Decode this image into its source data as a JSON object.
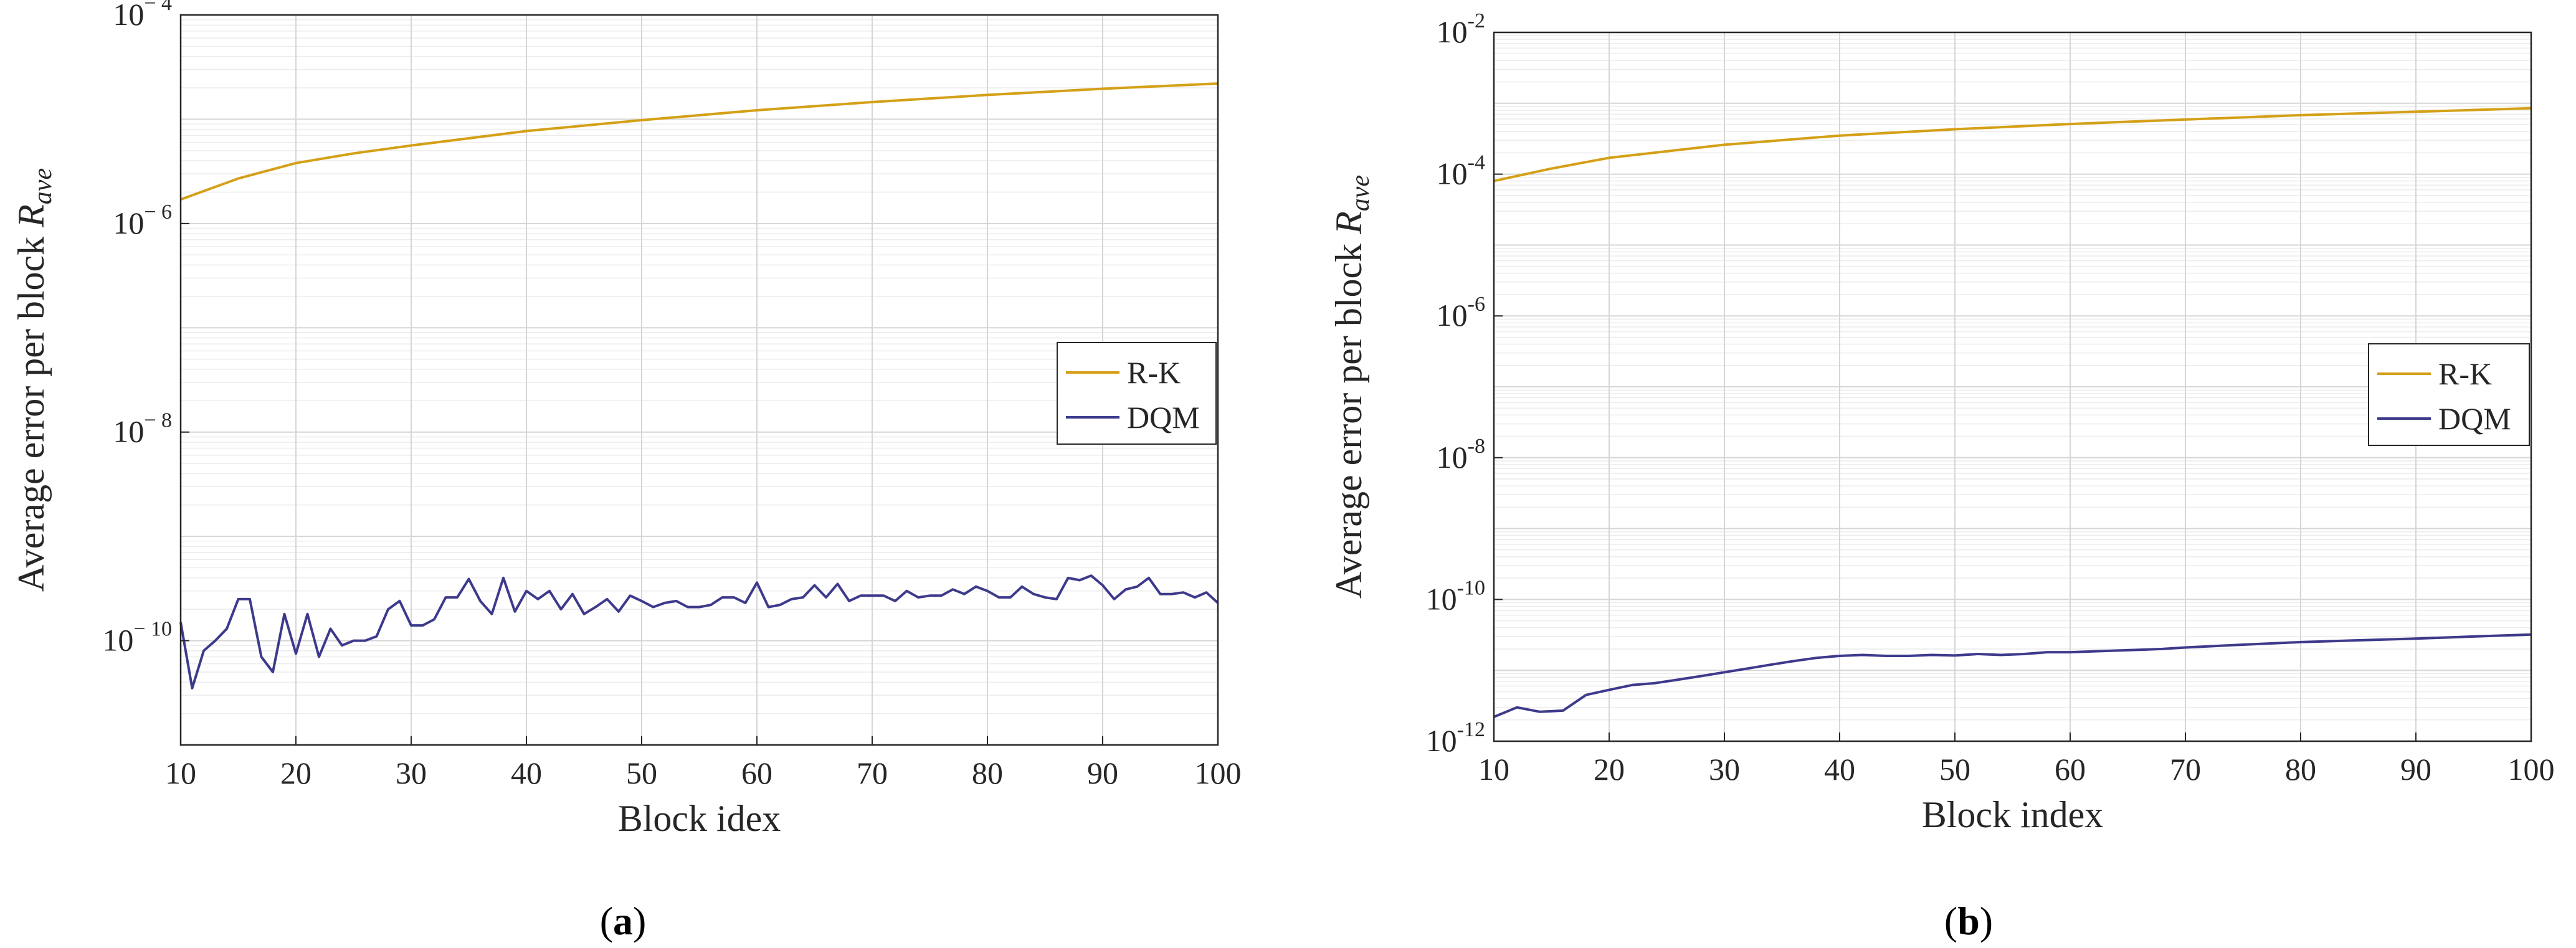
{
  "chart_data": [
    {
      "type": "line",
      "panel_label": "a",
      "xlabel": "Block idex",
      "ylabel_main": "Average error per block ",
      "ylabel_symbol": "R",
      "ylabel_sub": "ave",
      "xlim": [
        10,
        100
      ],
      "ylim_exponent": [
        -11,
        -4
      ],
      "xticks": [
        10,
        20,
        30,
        40,
        50,
        60,
        70,
        80,
        90,
        100
      ],
      "yticks": [
        {
          "exp": -4,
          "base": "10",
          "power": "− 4"
        },
        {
          "exp": -6,
          "base": "10",
          "power": "− 6"
        },
        {
          "exp": -8,
          "base": "10",
          "power": "− 8"
        },
        {
          "exp": -10,
          "base": "10",
          "power": "− 10"
        }
      ],
      "grid": true,
      "legend_position": "right-middle",
      "series": [
        {
          "name": "R-K",
          "color": "#D4A017",
          "x": [
            10,
            15,
            20,
            25,
            30,
            40,
            50,
            60,
            70,
            80,
            90,
            100
          ],
          "values": [
            1.7e-06,
            2.7e-06,
            3.8e-06,
            4.7e-06,
            5.6e-06,
            7.7e-06,
            9.8e-06,
            1.22e-05,
            1.46e-05,
            1.71e-05,
            1.96e-05,
            2.2e-05
          ]
        },
        {
          "name": "DQM",
          "color": "#3D3A8C",
          "x": [
            10,
            11,
            12,
            13,
            14,
            15,
            16,
            17,
            18,
            19,
            20,
            21,
            22,
            23,
            24,
            25,
            26,
            27,
            28,
            29,
            30,
            31,
            32,
            33,
            34,
            35,
            36,
            37,
            38,
            39,
            40,
            41,
            42,
            43,
            44,
            45,
            46,
            47,
            48,
            49,
            50,
            51,
            52,
            53,
            54,
            55,
            56,
            57,
            58,
            59,
            60,
            61,
            62,
            63,
            64,
            65,
            66,
            67,
            68,
            69,
            70,
            71,
            72,
            73,
            74,
            75,
            76,
            77,
            78,
            79,
            80,
            81,
            82,
            83,
            84,
            85,
            86,
            87,
            88,
            89,
            90,
            91,
            92,
            93,
            94,
            95,
            96,
            97,
            98,
            99,
            100
          ],
          "values": [
            1.5e-10,
            3.5e-11,
            8e-11,
            1e-10,
            1.3e-10,
            2.5e-10,
            2.5e-10,
            7e-11,
            5e-11,
            1.8e-10,
            7.5e-11,
            1.8e-10,
            7e-11,
            1.3e-10,
            9e-11,
            1e-10,
            1e-10,
            1.1e-10,
            2e-10,
            2.4e-10,
            1.4e-10,
            1.4e-10,
            1.6e-10,
            2.6e-10,
            2.6e-10,
            3.9e-10,
            2.4e-10,
            1.8e-10,
            4e-10,
            1.9e-10,
            3e-10,
            2.5e-10,
            3e-10,
            2e-10,
            2.8e-10,
            1.8e-10,
            2.1e-10,
            2.5e-10,
            1.9e-10,
            2.7e-10,
            2.4e-10,
            2.1e-10,
            2.3e-10,
            2.4e-10,
            2.1e-10,
            2.1e-10,
            2.2e-10,
            2.6e-10,
            2.6e-10,
            2.3e-10,
            3.6e-10,
            2.1e-10,
            2.2e-10,
            2.5e-10,
            2.6e-10,
            3.4e-10,
            2.6e-10,
            3.5e-10,
            2.4e-10,
            2.7e-10,
            2.7e-10,
            2.7e-10,
            2.4e-10,
            3e-10,
            2.6e-10,
            2.7e-10,
            2.7e-10,
            3.1e-10,
            2.8e-10,
            3.3e-10,
            3e-10,
            2.6e-10,
            2.6e-10,
            3.3e-10,
            2.8e-10,
            2.6e-10,
            2.5e-10,
            4e-10,
            3.8e-10,
            4.2e-10,
            3.4e-10,
            2.5e-10,
            3.1e-10,
            3.3e-10,
            4e-10,
            2.8e-10,
            2.8e-10,
            2.9e-10,
            2.6e-10,
            2.9e-10,
            2.3e-10
          ]
        }
      ]
    },
    {
      "type": "line",
      "panel_label": "b",
      "xlabel": "Block index",
      "ylabel_main": "Average error per block ",
      "ylabel_symbol": "R",
      "ylabel_sub": "ave",
      "xlim": [
        10,
        100
      ],
      "ylim_exponent": [
        -12,
        -2
      ],
      "xticks": [
        10,
        20,
        30,
        40,
        50,
        60,
        70,
        80,
        90,
        100
      ],
      "yticks": [
        {
          "exp": -2,
          "base": "10",
          "power": "-2"
        },
        {
          "exp": -4,
          "base": "10",
          "power": "-4"
        },
        {
          "exp": -6,
          "base": "10",
          "power": "-6"
        },
        {
          "exp": -8,
          "base": "10",
          "power": "-8"
        },
        {
          "exp": -10,
          "base": "10",
          "power": "-10"
        },
        {
          "exp": -12,
          "base": "10",
          "power": "-12"
        }
      ],
      "grid": true,
      "legend_position": "right-middle",
      "series": [
        {
          "name": "R-K",
          "color": "#D4A017",
          "x": [
            10,
            15,
            20,
            25,
            30,
            40,
            50,
            60,
            70,
            80,
            90,
            100
          ],
          "values": [
            8e-05,
            0.00012,
            0.00017,
            0.00021,
            0.00026,
            0.00035,
            0.00043,
            0.00051,
            0.00059,
            0.00068,
            0.00076,
            0.00085
          ]
        },
        {
          "name": "DQM",
          "color": "#3D3A8C",
          "x": [
            10,
            12,
            14,
            16,
            18,
            20,
            22,
            24,
            26,
            28,
            30,
            32,
            34,
            36,
            38,
            40,
            42,
            44,
            46,
            48,
            50,
            52,
            54,
            56,
            58,
            60,
            62,
            64,
            66,
            68,
            70,
            75,
            80,
            85,
            90,
            95,
            100
          ],
          "values": [
            2.2e-12,
            3e-12,
            2.6e-12,
            2.7e-12,
            4.5e-12,
            5.3e-12,
            6.2e-12,
            6.6e-12,
            7.4e-12,
            8.3e-12,
            9.4e-12,
            1.06e-11,
            1.2e-11,
            1.35e-11,
            1.5e-11,
            1.6e-11,
            1.65e-11,
            1.6e-11,
            1.6e-11,
            1.65e-11,
            1.62e-11,
            1.7e-11,
            1.65e-11,
            1.7e-11,
            1.8e-11,
            1.8e-11,
            1.85e-11,
            1.9e-11,
            1.95e-11,
            2e-11,
            2.1e-11,
            2.3e-11,
            2.5e-11,
            2.65e-11,
            2.8e-11,
            3e-11,
            3.2e-11
          ]
        }
      ]
    }
  ]
}
